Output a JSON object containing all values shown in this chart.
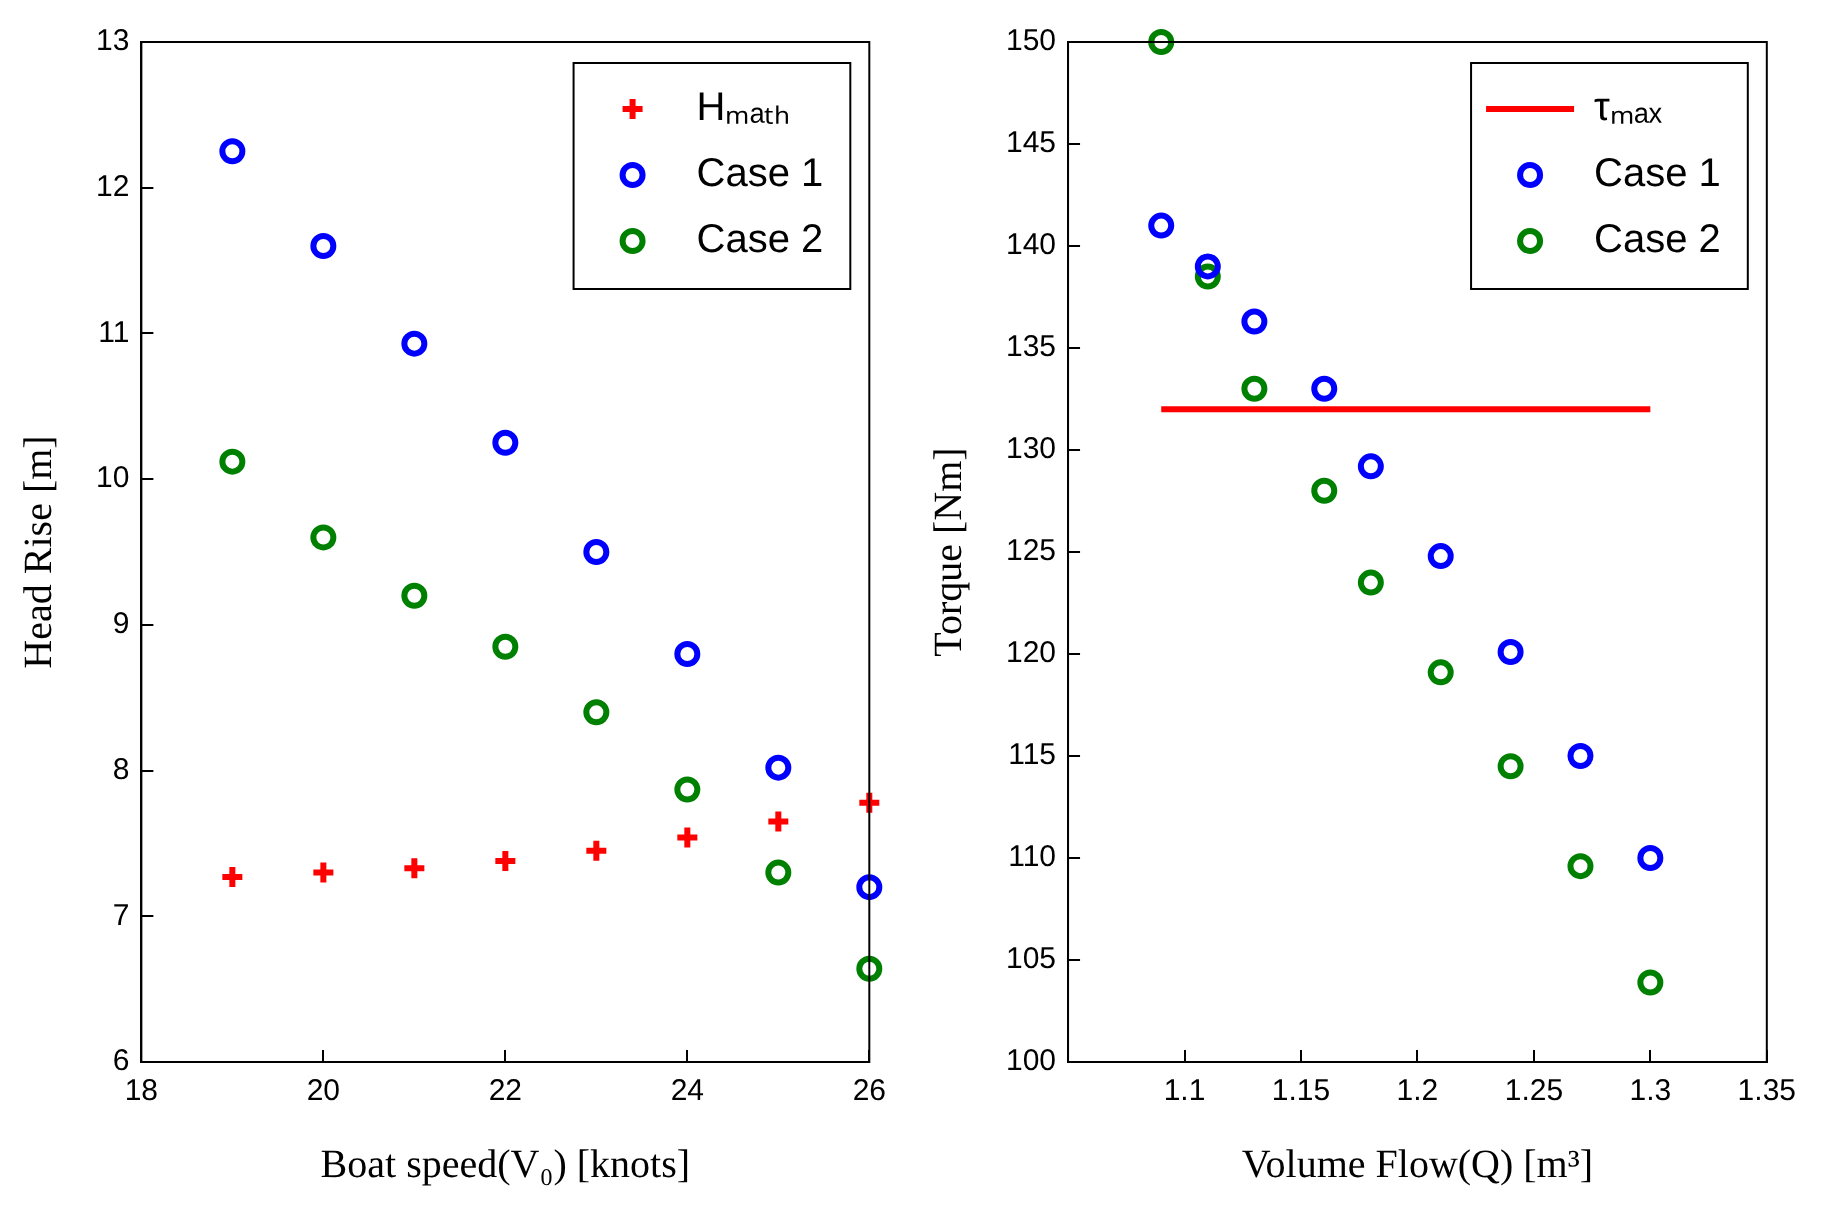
{
  "chart_data": [
    {
      "type": "scatter",
      "xlabel": "Boat speed(V₀) [knots]",
      "ylabel": "Head Rise [m]",
      "x": [
        19,
        20,
        21,
        22,
        23,
        24,
        25,
        26
      ],
      "xlim": [
        18,
        26
      ],
      "xticks": [
        18,
        20,
        22,
        24,
        26
      ],
      "ylim": [
        6,
        13
      ],
      "yticks": [
        6,
        7,
        8,
        9,
        10,
        11,
        12,
        13
      ],
      "legend": "top right",
      "grid": false,
      "series": [
        {
          "name": "Hₘₐₜₕ",
          "color": "#ff0000",
          "marker": "cross",
          "values": [
            7.27,
            7.3,
            7.33,
            7.38,
            7.45,
            7.54,
            7.65,
            7.78
          ]
        },
        {
          "name": "Case 1",
          "color": "#0000ff",
          "marker": "circle",
          "values": [
            12.25,
            11.6,
            10.93,
            10.25,
            9.5,
            8.8,
            8.02,
            7.2
          ]
        },
        {
          "name": "Case 2",
          "color": "#008000",
          "marker": "circle",
          "values": [
            10.12,
            9.6,
            9.2,
            8.85,
            8.4,
            7.87,
            7.3,
            6.64
          ]
        }
      ]
    },
    {
      "type": "scatter",
      "xlabel": "Volume Flow(Q) [m³]",
      "ylabel": "Torque [Nm]",
      "x": [
        1.09,
        1.11,
        1.13,
        1.16,
        1.18,
        1.21,
        1.24,
        1.27,
        1.3
      ],
      "xlim": [
        1.05,
        1.35
      ],
      "xticks": [
        1.1,
        1.15,
        1.2,
        1.25,
        1.3,
        1.35
      ],
      "ylim": [
        100,
        150
      ],
      "yticks": [
        100,
        105,
        110,
        115,
        120,
        125,
        130,
        135,
        140,
        145,
        150
      ],
      "legend": "top right",
      "grid": false,
      "series": [
        {
          "name": "τₘₐₓ",
          "type": "line",
          "color": "#ff0000",
          "marker": "none",
          "x": [
            1.09,
            1.3
          ],
          "values": [
            132,
            132
          ]
        },
        {
          "name": "Case 1",
          "color": "#0000ff",
          "marker": "circle",
          "values": [
            141,
            139,
            136.3,
            133,
            129.2,
            124.8,
            120.1,
            115,
            110
          ]
        },
        {
          "name": "Case 2",
          "color": "#008000",
          "marker": "circle",
          "values": [
            150,
            138.5,
            133,
            128,
            123.5,
            119.1,
            114.5,
            109.6,
            103.9
          ]
        }
      ]
    }
  ]
}
